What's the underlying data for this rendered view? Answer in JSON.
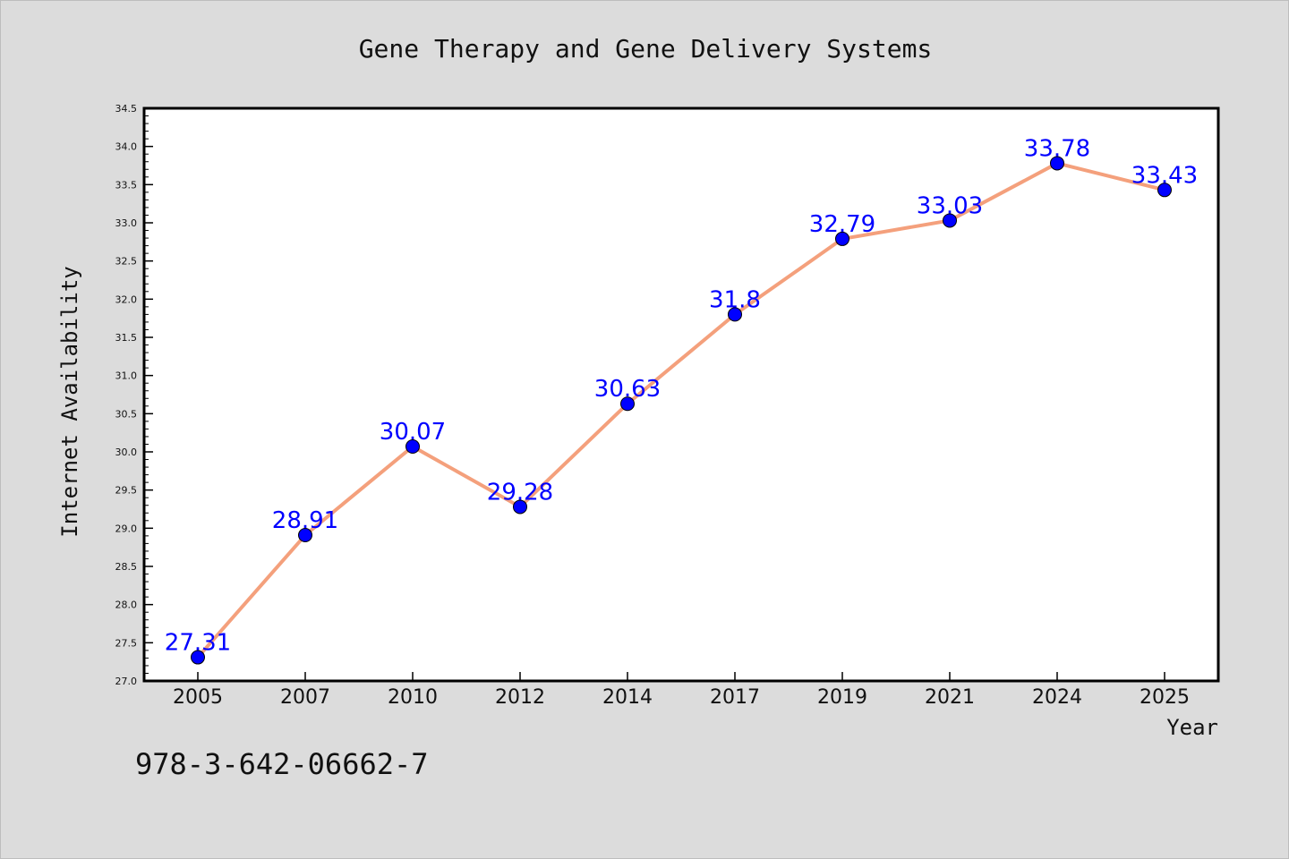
{
  "chart_data": {
    "type": "line",
    "title": "Gene Therapy and Gene Delivery Systems",
    "xlabel": "Year",
    "ylabel": "Internet Availability",
    "categories": [
      "2005",
      "2007",
      "2010",
      "2012",
      "2014",
      "2017",
      "2019",
      "2021",
      "2024",
      "2025"
    ],
    "series": [
      {
        "values": [
          27.31,
          28.91,
          30.07,
          29.28,
          30.63,
          31.8,
          32.79,
          33.03,
          33.78,
          33.43
        ],
        "labels": [
          "27.31",
          "28.91",
          "30.07",
          "29.28",
          "30.63",
          "31.8",
          "32.79",
          "33.03",
          "33.78",
          "33.43"
        ]
      }
    ],
    "ylim": [
      27.0,
      34.5
    ],
    "yticks": [
      "27.0",
      "27.5",
      "28.0",
      "28.5",
      "29.0",
      "29.5",
      "30.0",
      "30.5",
      "31.0",
      "31.5",
      "32.0",
      "32.5",
      "33.0",
      "33.5",
      "34.0",
      "34.5"
    ],
    "grid": false,
    "colors": {
      "line": "#f4a07c",
      "marker": "#0000ff",
      "data_label": "#0000ff",
      "background": "#dcdcdc",
      "plot_area": "#ffffff"
    }
  },
  "footer": {
    "isbn": "978-3-642-06662-7"
  }
}
